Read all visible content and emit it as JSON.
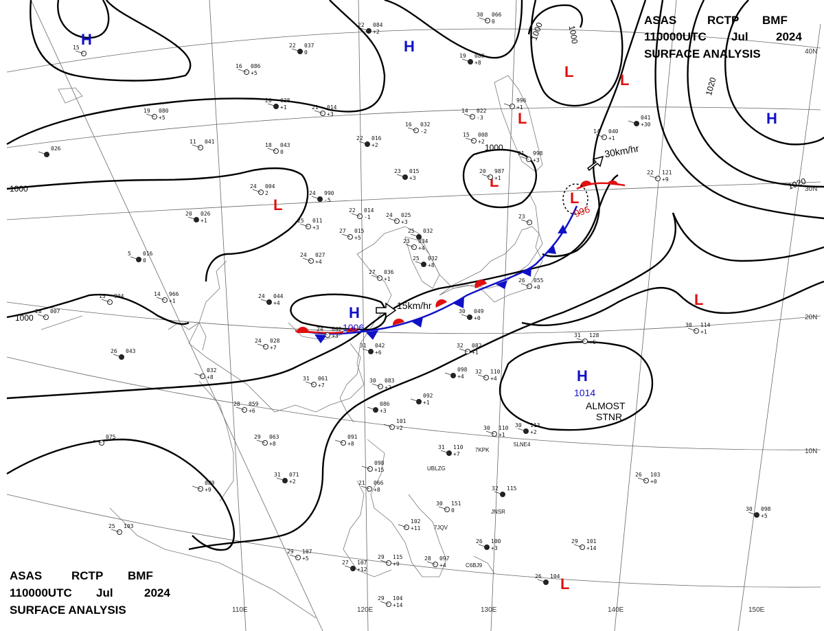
{
  "header": {
    "line1": [
      "ASAS",
      "RCTP",
      "BMF"
    ],
    "line2": [
      "110000UTC",
      "Jul",
      "2024"
    ],
    "line3": "SURFACE ANALYSIS"
  },
  "colors": {
    "high": "#1010c8",
    "low": "#e01010",
    "isobar": "#000000",
    "cold_front": "#1010c8",
    "warm_front": "#e01010"
  },
  "grid_labels": {
    "longitudes": [
      "110E",
      "120E",
      "130E",
      "140E",
      "150E"
    ],
    "latitudes": [
      "40N",
      "30N",
      "20N",
      "10N"
    ]
  },
  "isobar_labels": [
    "1000",
    "1000",
    "1000",
    "1000",
    "1000",
    "1020",
    "1020"
  ],
  "pressure_systems": [
    {
      "type": "H",
      "value": ""
    },
    {
      "type": "H",
      "value": ""
    },
    {
      "type": "H",
      "value": ""
    },
    {
      "type": "H",
      "value": "1006"
    },
    {
      "type": "H",
      "value": "1014"
    },
    {
      "type": "L",
      "value": ""
    },
    {
      "type": "L",
      "value": ""
    },
    {
      "type": "L",
      "value": ""
    },
    {
      "type": "L",
      "value": ""
    },
    {
      "type": "L",
      "value": "996"
    },
    {
      "type": "L",
      "value": ""
    },
    {
      "type": "L",
      "value": ""
    },
    {
      "type": "L",
      "value": ""
    }
  ],
  "annotations": {
    "motion_h": "15km/hr",
    "motion_l": "30km/hr",
    "almost": "ALMOST",
    "stnr": "STNR"
  },
  "stations": [
    {
      "t": "22",
      "p": "084",
      "d": "+2"
    },
    {
      "t": "30",
      "p": "066",
      "d": "0"
    },
    {
      "t": "15",
      "p": "",
      "d": ""
    },
    {
      "t": "22",
      "p": "037",
      "d": "0"
    },
    {
      "t": "16",
      "p": "086",
      "d": "+5"
    },
    {
      "t": "19",
      "p": "080",
      "d": "+5"
    },
    {
      "t": "20",
      "p": "038",
      "d": "+1"
    },
    {
      "t": "21",
      "p": "014",
      "d": "+3"
    },
    {
      "t": "14",
      "p": "022",
      "d": "-3"
    },
    {
      "t": "19",
      "p": "080",
      "d": "+8"
    },
    {
      "t": "16",
      "p": "032",
      "d": "-2"
    },
    {
      "t": "15",
      "p": "008",
      "d": "+2"
    },
    {
      "t": "22",
      "p": "016",
      "d": "+2"
    },
    {
      "t": "18",
      "p": "043",
      "d": "0"
    },
    {
      "t": "11",
      "p": "041",
      "d": ""
    },
    {
      "t": "",
      "p": "026",
      "d": ""
    },
    {
      "t": "",
      "p": "996",
      "d": "+1"
    },
    {
      "t": "14",
      "p": "040",
      "d": "+1"
    },
    {
      "t": "",
      "p": "041",
      "d": "+30"
    },
    {
      "t": "20",
      "p": "987",
      "d": "+1"
    },
    {
      "t": "21",
      "p": "998",
      "d": "+3"
    },
    {
      "t": "23",
      "p": "015",
      "d": "+3"
    },
    {
      "t": "22",
      "p": "121",
      "d": "+9"
    },
    {
      "t": "24",
      "p": "004",
      "d": "2"
    },
    {
      "t": "24",
      "p": "990",
      "d": "-5"
    },
    {
      "t": "22",
      "p": "014",
      "d": "-1"
    },
    {
      "t": "24",
      "p": "025",
      "d": "+3"
    },
    {
      "t": "20",
      "p": "026",
      "d": "+1"
    },
    {
      "t": "25",
      "p": "011",
      "d": "+3"
    },
    {
      "t": "27",
      "p": "015",
      "d": "+5"
    },
    {
      "t": "25",
      "p": "032",
      "d": ""
    },
    {
      "t": "23",
      "p": "034",
      "d": "+4"
    },
    {
      "t": "23",
      "p": "",
      "d": ""
    },
    {
      "t": "5",
      "p": "016",
      "d": "0"
    },
    {
      "t": "24",
      "p": "027",
      "d": "+4"
    },
    {
      "t": "27",
      "p": "036",
      "d": "+1"
    },
    {
      "t": "25",
      "p": "032",
      "d": "+8"
    },
    {
      "t": "14",
      "p": "966",
      "d": "+1"
    },
    {
      "t": "15",
      "p": "904",
      "d": ""
    },
    {
      "t": "24",
      "p": "044",
      "d": "+4"
    },
    {
      "t": "26",
      "p": "055",
      "d": "+0"
    },
    {
      "t": "28",
      "p": "007",
      "d": ""
    },
    {
      "t": "30",
      "p": "049",
      "d": "+0"
    },
    {
      "t": "24",
      "p": "042",
      "d": "+3"
    },
    {
      "t": "24",
      "p": "028",
      "d": "+7"
    },
    {
      "t": "31",
      "p": "042",
      "d": "+6"
    },
    {
      "t": "32",
      "p": "082",
      "d": "+1"
    },
    {
      "t": "31",
      "p": "128",
      "d": "+6"
    },
    {
      "t": "26",
      "p": "043",
      "d": ""
    },
    {
      "t": "",
      "p": "032",
      "d": "+8"
    },
    {
      "t": "31",
      "p": "061",
      "d": "+7"
    },
    {
      "t": "",
      "p": "098",
      "d": "+4"
    },
    {
      "t": "32",
      "p": "110",
      "d": "+4"
    },
    {
      "t": "30",
      "p": "083",
      "d": "+2"
    },
    {
      "t": "",
      "p": "092",
      "d": "+1"
    },
    {
      "t": "30",
      "p": "114",
      "d": "+1"
    },
    {
      "t": "28",
      "p": "059",
      "d": "+6"
    },
    {
      "t": "",
      "p": "086",
      "d": "+3"
    },
    {
      "t": "",
      "p": "101",
      "d": "+2"
    },
    {
      "t": "30",
      "p": "110",
      "d": "+1"
    },
    {
      "t": "30",
      "p": "113",
      "d": "+2"
    },
    {
      "t": "29",
      "p": "063",
      "d": "+8"
    },
    {
      "t": "",
      "p": "091",
      "d": "+8"
    },
    {
      "t": "31",
      "p": "110",
      "d": "+7"
    },
    {
      "t": "",
      "p": "075",
      "d": ""
    },
    {
      "t": "",
      "p": "089",
      "d": "+9"
    },
    {
      "t": "31",
      "p": "071",
      "d": "+2"
    },
    {
      "t": "",
      "p": "098",
      "d": "+15"
    },
    {
      "t": "21",
      "p": "066",
      "d": "+8"
    },
    {
      "t": "32",
      "p": "115",
      "d": ""
    },
    {
      "t": "30",
      "p": "151",
      "d": "0"
    },
    {
      "t": "26",
      "p": "103",
      "d": "+0"
    },
    {
      "t": "30",
      "p": "098",
      "d": "+5"
    },
    {
      "t": "25",
      "p": "103",
      "d": ""
    },
    {
      "t": "",
      "p": "102",
      "d": "+11"
    },
    {
      "t": "26",
      "p": "100",
      "d": "+3"
    },
    {
      "t": "29",
      "p": "101",
      "d": "+14"
    },
    {
      "t": "29",
      "p": "107",
      "d": "+5"
    },
    {
      "t": "27",
      "p": "107",
      "d": "+12"
    },
    {
      "t": "29",
      "p": "115",
      "d": "+9"
    },
    {
      "t": "28",
      "p": "097",
      "d": "+4"
    },
    {
      "t": "26",
      "p": "104",
      "d": ""
    },
    {
      "t": "29",
      "p": "104",
      "d": "+14"
    }
  ],
  "station_ids": [
    "7KPK",
    "5LNE4",
    "UBLZG",
    "JNSR",
    "7JQV",
    "C6BJ9"
  ]
}
